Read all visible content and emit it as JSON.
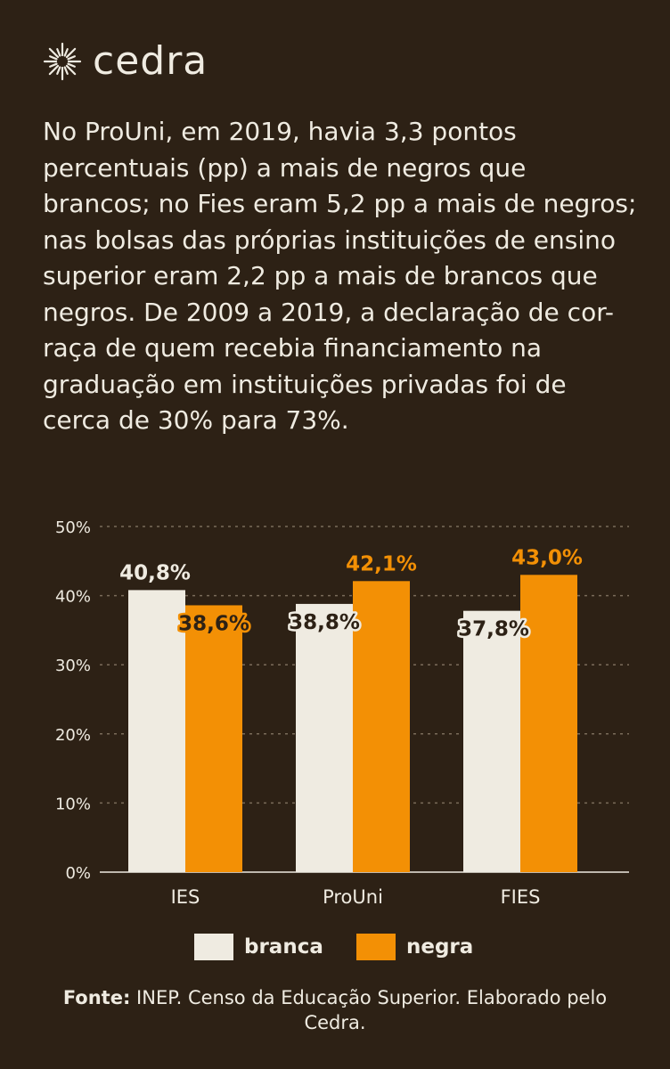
{
  "brand": {
    "name": "cedra",
    "icon": "sunburst-logo-icon"
  },
  "intro": "No ProUni, em 2019, havia 3,3 pontos percentuais (pp) a mais de negros que brancos; no Fies eram 5,2 pp a mais de negros; nas bolsas das próprias instituições de ensino superior eram 2,2 pp a mais de brancos que negros. De 2009 a 2019, a declaração de cor-raça de quem recebia financiamento na graduação em instituições privadas foi de cerca de 30% para 73%.",
  "source": {
    "label": "Fonte:",
    "text": " INEP. Censo da Educação Superior. Elaborado pelo Cedra."
  },
  "colors": {
    "background": "#2d2115",
    "branca": "#efebe1",
    "negra": "#f39005",
    "text": "#efebe1",
    "grid": "#7a6c5a"
  },
  "chart_data": {
    "type": "bar",
    "categories": [
      "IES",
      "ProUni",
      "FIES"
    ],
    "series": [
      {
        "name": "branca",
        "values": [
          40.8,
          38.8,
          37.8
        ],
        "labels": [
          "40,8%",
          "38,8%",
          "37,8%"
        ],
        "color": "#efebe1"
      },
      {
        "name": "negra",
        "values": [
          38.6,
          42.1,
          43.0
        ],
        "labels": [
          "38,6%",
          "42,1%",
          "43,0%"
        ],
        "color": "#f39005"
      }
    ],
    "ylim": [
      0,
      50
    ],
    "yticks": [
      0,
      10,
      20,
      30,
      40,
      50
    ],
    "ytick_labels": [
      "0%",
      "10%",
      "20%",
      "30%",
      "40%",
      "50%"
    ],
    "grid": true,
    "legend_position": "bottom-center"
  }
}
